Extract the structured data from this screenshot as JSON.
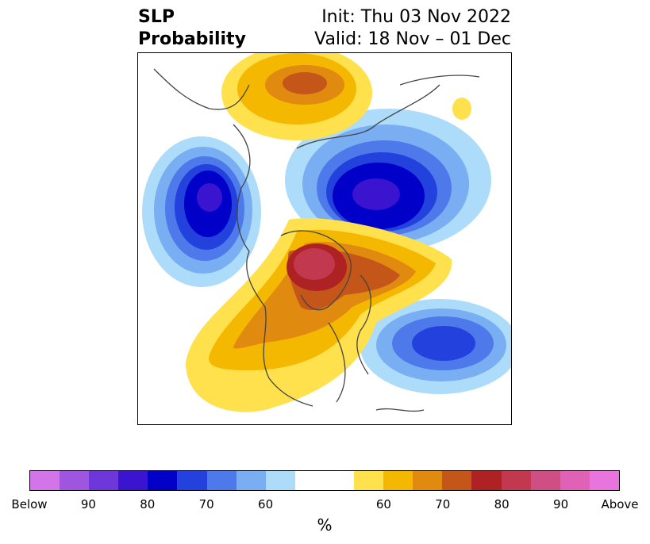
{
  "title": {
    "left_line1": "SLP",
    "left_line2": "Probability",
    "right_line1": "Init: Thu 03 Nov 2022",
    "right_line2": "Valid: 18 Nov – 01 Dec"
  },
  "colorbar": {
    "colors": [
      "#d175e8",
      "#a055e0",
      "#6e37d9",
      "#3a14cf",
      "#0000c9",
      "#2341dc",
      "#4d79ea",
      "#79aff2",
      "#acdcfa",
      "#ffffff",
      "#ffffff",
      "#ffe04d",
      "#f4b800",
      "#e08a10",
      "#c4561a",
      "#ae2224",
      "#c2384f",
      "#cf4f84",
      "#df62b6",
      "#e875de"
    ],
    "tick_labels": [
      "Below",
      "90",
      "80",
      "70",
      "60",
      "60",
      "70",
      "80",
      "90",
      "Above"
    ],
    "unit": "%"
  },
  "map": {
    "anomalies": [
      {
        "name": "north-pacific-low",
        "kind": "below",
        "level": 80
      },
      {
        "name": "arctic-low",
        "kind": "below",
        "level": 90
      },
      {
        "name": "north-atlantic-low",
        "kind": "below",
        "level": 80
      },
      {
        "name": "canada-high",
        "kind": "above",
        "level": 80
      },
      {
        "name": "arctic-siberia-high",
        "kind": "above",
        "level": 70
      }
    ]
  }
}
